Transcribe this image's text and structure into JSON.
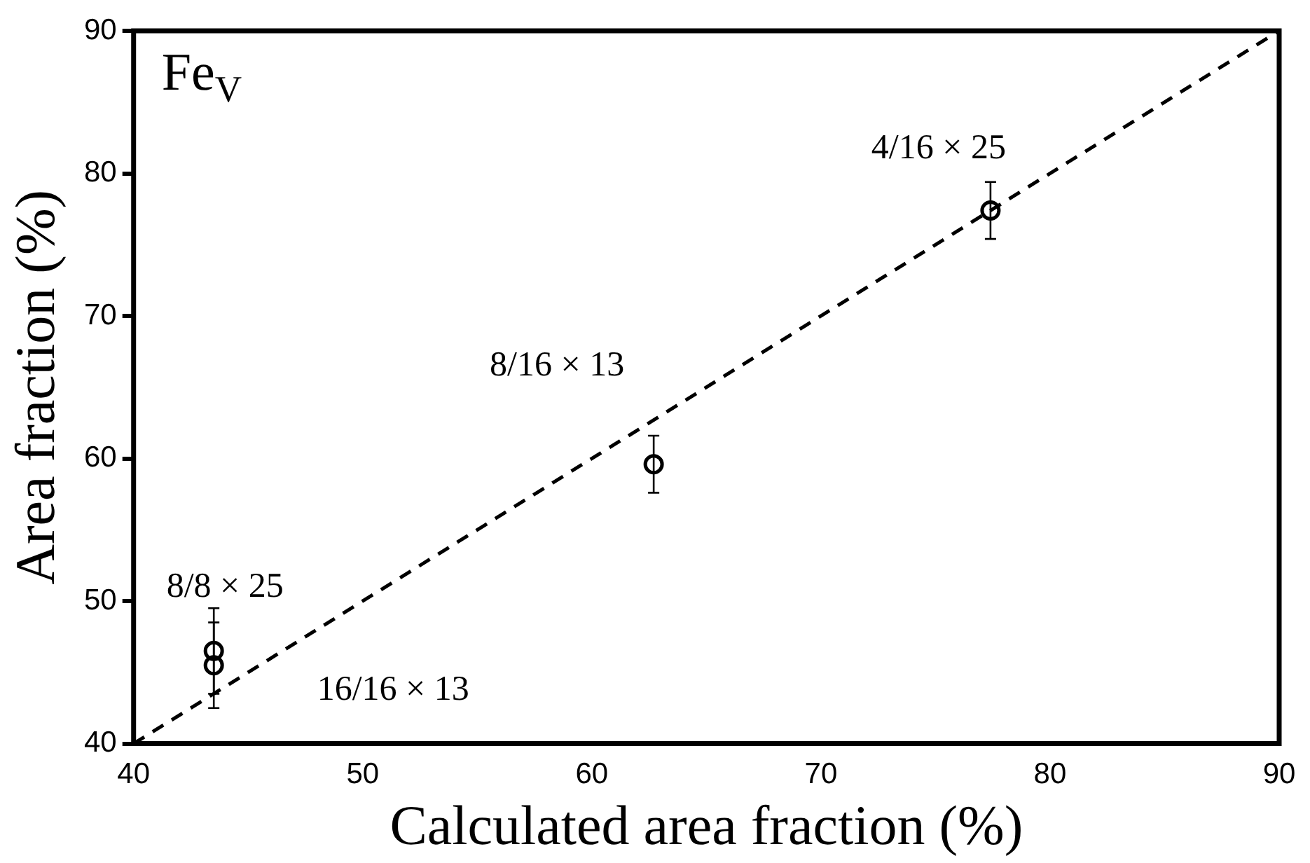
{
  "chart_data": {
    "type": "scatter",
    "title": "Fe$_{V}$",
    "xlabel": "Calculated area fraction (%)",
    "ylabel": "Area fraction (%)",
    "xlim": [
      40,
      90
    ],
    "xticks": [
      40,
      50,
      60,
      70,
      80,
      90
    ],
    "ylim": [
      40,
      90
    ],
    "yticks": [
      40,
      50,
      60,
      70,
      80,
      90
    ],
    "grid": false,
    "legend": false,
    "series": [
      {
        "color": "#000000",
        "marker": "circle",
        "x": [
          43.5,
          43.5,
          62.7,
          77.4
        ],
        "values": [
          46.5,
          45.5,
          59.6,
          77.4
        ],
        "errors": [
          3,
          3,
          2,
          2
        ]
      },
      {
        "type": "line",
        "color": "#000000",
        "marker": "none",
        "line_style": "dashed",
        "x": [
          40,
          90
        ],
        "values": [
          40,
          90
        ]
      }
    ],
    "annotations": [
      {
        "text": "4/16 × 25",
        "x": 77.4,
        "y": 77.4
      },
      {
        "text": "8/16 × 13",
        "x": 62.7,
        "y": 59.6
      },
      {
        "text": "8/8 × 25",
        "x": 43.5,
        "y": 46.5
      },
      {
        "text": "16/16 × 13",
        "x": 43.5,
        "y": 45.5
      }
    ]
  }
}
